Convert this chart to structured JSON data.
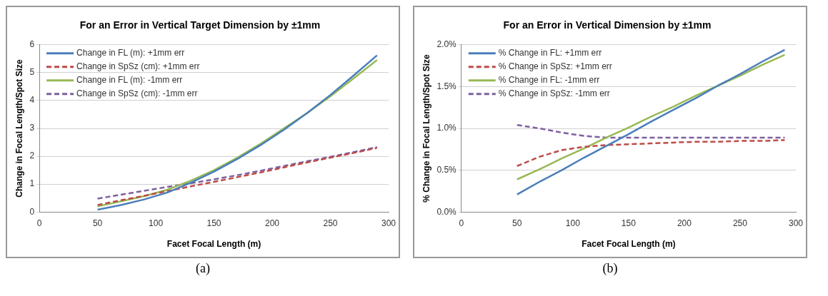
{
  "chart_data": [
    {
      "type": "line",
      "title": "For an Error in Vertical Target Dimension by ±1mm",
      "xlabel": "Facet Focal Length (m)",
      "ylabel": "Change in Focal Length/Spot Size",
      "x": [
        50,
        70,
        90,
        110,
        130,
        150,
        170,
        190,
        210,
        230,
        250,
        270,
        290
      ],
      "xlim": [
        0,
        300
      ],
      "xticks": [
        0,
        50,
        100,
        150,
        200,
        250,
        300
      ],
      "ylim": [
        0,
        6
      ],
      "yticks": [
        0,
        1,
        2,
        3,
        4,
        5,
        6
      ],
      "grid": "y",
      "legend": "top left",
      "marker": "none",
      "annotations": [
        "(a)"
      ],
      "series": [
        {
          "name": "Change in FL (m): +1mm err",
          "color": "#4a7ebb",
          "line_style": "solid",
          "values": [
            0.08,
            0.25,
            0.45,
            0.7,
            1.05,
            1.45,
            1.9,
            2.4,
            2.95,
            3.55,
            4.2,
            4.9,
            5.62
          ]
        },
        {
          "name": "Change in SpSz (cm): +1mm err",
          "color": "#be4b48",
          "line_style": "dashed",
          "values": [
            0.25,
            0.42,
            0.58,
            0.75,
            0.92,
            1.08,
            1.25,
            1.42,
            1.6,
            1.78,
            1.95,
            2.12,
            2.3
          ]
        },
        {
          "name": "Change in FL (m): -1mm err",
          "color": "#98b954",
          "line_style": "solid",
          "values": [
            0.2,
            0.38,
            0.57,
            0.8,
            1.12,
            1.5,
            1.95,
            2.45,
            3.0,
            3.55,
            4.15,
            4.8,
            5.45
          ]
        },
        {
          "name": "Change in SpSz (cm): -1mm err",
          "color": "#7d60a0",
          "line_style": "dashed",
          "values": [
            0.48,
            0.62,
            0.76,
            0.9,
            1.03,
            1.17,
            1.32,
            1.48,
            1.65,
            1.82,
            1.98,
            2.15,
            2.33
          ]
        }
      ]
    },
    {
      "type": "line",
      "title": "For an Error in Vertical Dimension by ±1mm",
      "xlabel": "Facet Focal Length (m)",
      "ylabel": "% Change in Focal Length/Spot Size",
      "x": [
        50,
        70,
        90,
        110,
        130,
        150,
        170,
        190,
        210,
        230,
        250,
        270,
        290
      ],
      "xlim": [
        0,
        300
      ],
      "xticks": [
        0,
        50,
        100,
        150,
        200,
        250,
        300
      ],
      "ylim": [
        0,
        2
      ],
      "yticks": [
        {
          "value": 0,
          "label": "0.0%"
        },
        {
          "value": 0.5,
          "label": "0.5%"
        },
        {
          "value": 1,
          "label": "1.0%"
        },
        {
          "value": 1.5,
          "label": "1.5%"
        },
        {
          "value": 2,
          "label": "2.0%"
        }
      ],
      "grid": "y",
      "legend": "top left",
      "marker": "none",
      "annotations": [
        "(b)"
      ],
      "series": [
        {
          "name": "% Change in FL: +1mm err",
          "color": "#4a7ebb",
          "line_style": "solid",
          "values": [
            0.21,
            0.36,
            0.5,
            0.65,
            0.79,
            0.93,
            1.08,
            1.22,
            1.36,
            1.51,
            1.65,
            1.8,
            1.94
          ]
        },
        {
          "name": "% Change in SpSz: +1mm err",
          "color": "#be4b48",
          "line_style": "dashed",
          "values": [
            0.55,
            0.66,
            0.74,
            0.78,
            0.8,
            0.81,
            0.82,
            0.83,
            0.84,
            0.84,
            0.85,
            0.85,
            0.86
          ]
        },
        {
          "name": "% Change in FL: -1mm err",
          "color": "#98b954",
          "line_style": "solid",
          "values": [
            0.39,
            0.51,
            0.64,
            0.76,
            0.89,
            1.01,
            1.14,
            1.26,
            1.39,
            1.51,
            1.63,
            1.76,
            1.88
          ]
        },
        {
          "name": "% Change in SpSz: -1mm err",
          "color": "#7d60a0",
          "line_style": "dashed",
          "values": [
            1.04,
            1.0,
            0.95,
            0.91,
            0.89,
            0.89,
            0.89,
            0.89,
            0.89,
            0.89,
            0.89,
            0.89,
            0.89
          ]
        }
      ]
    }
  ]
}
